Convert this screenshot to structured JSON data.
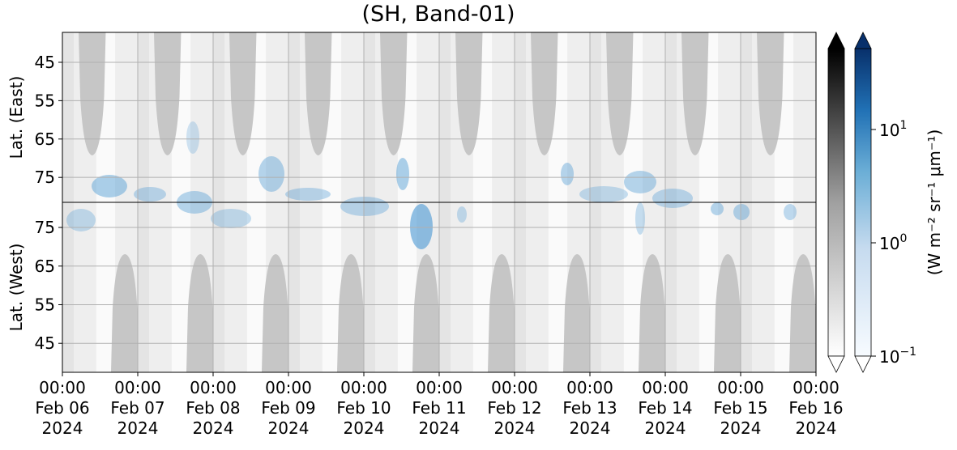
{
  "chart_data": {
    "type": "heatmap",
    "title": "(SH, Band-01)",
    "xlim": [
      0,
      10
    ],
    "xticks": [
      {
        "value": 0,
        "label": [
          "00:00",
          "Feb 06",
          "2024"
        ]
      },
      {
        "value": 1,
        "label": [
          "00:00",
          "Feb 07",
          "2024"
        ]
      },
      {
        "value": 2,
        "label": [
          "00:00",
          "Feb 08",
          "2024"
        ]
      },
      {
        "value": 3,
        "label": [
          "00:00",
          "Feb 09",
          "2024"
        ]
      },
      {
        "value": 4,
        "label": [
          "00:00",
          "Feb 10",
          "2024"
        ]
      },
      {
        "value": 5,
        "label": [
          "00:00",
          "Feb 11",
          "2024"
        ]
      },
      {
        "value": 6,
        "label": [
          "00:00",
          "Feb 12",
          "2024"
        ]
      },
      {
        "value": 7,
        "label": [
          "00:00",
          "Feb 13",
          "2024"
        ]
      },
      {
        "value": 8,
        "label": [
          "00:00",
          "Feb 14",
          "2024"
        ]
      },
      {
        "value": 9,
        "label": [
          "00:00",
          "Feb 15",
          "2024"
        ]
      },
      {
        "value": 10,
        "label": [
          "00:00",
          "Feb 16",
          "2024"
        ]
      }
    ],
    "grid": true,
    "panels": [
      {
        "ylabel": "Lat. (East)",
        "ylim": [
          81.5,
          37.2
        ],
        "yticks": [
          45,
          55,
          65,
          75
        ]
      },
      {
        "ylabel": "Lat. (West)",
        "ylim": [
          37.5,
          81.5
        ],
        "yticks": [
          75,
          65,
          55,
          45
        ]
      }
    ],
    "colorbar": {
      "label": "(W m⁻² sr⁻¹ μm⁻¹)",
      "scale": "log",
      "lim": [
        0.1,
        51.8
      ],
      "colors": [
        "#000000",
        "#08306b"
      ],
      "ticks": [
        {
          "value": 0.1,
          "label": [
            "10",
            "−1"
          ]
        },
        {
          "value": 1,
          "label": [
            "10",
            "0"
          ]
        },
        {
          "value": 10,
          "label": [
            "10",
            "1"
          ]
        }
      ]
    }
  }
}
